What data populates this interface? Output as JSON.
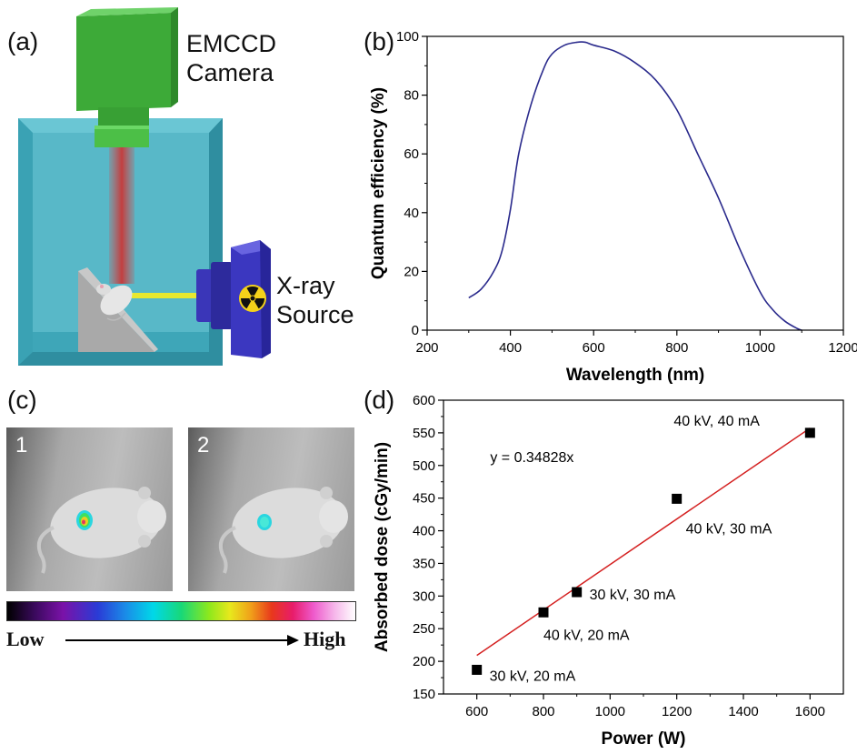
{
  "panel_a": {
    "label": "(a)",
    "camera_label_line1": "EMCCD",
    "camera_label_line2": "Camera",
    "source_label_line1": "X-ray",
    "source_label_line2": "Source",
    "colors": {
      "camera": "#3fae3a",
      "chamber": "#3c9fb0",
      "source": "#3a36b8",
      "beam_light": "#d04848",
      "beam_xray": "#e8e830"
    }
  },
  "panel_c": {
    "label": "(c)",
    "image1_number": "1",
    "image2_number": "2",
    "scale_low": "Low",
    "scale_high": "High"
  },
  "chart_data": [
    {
      "panel_label": "(b)",
      "type": "line",
      "xlabel": "Wavelength (nm)",
      "ylabel": "Quantum efficiency (%)",
      "xlim": [
        200,
        1200
      ],
      "ylim": [
        0,
        100
      ],
      "xticks": [
        200,
        400,
        600,
        800,
        1000,
        1200
      ],
      "yticks": [
        0,
        20,
        40,
        60,
        80,
        100
      ],
      "grid": false,
      "line_color": "#2a2a8c",
      "series": [
        {
          "x": [
            300,
            330,
            360,
            380,
            400,
            420,
            450,
            480,
            500,
            530,
            560,
            580,
            600,
            650,
            700,
            750,
            800,
            850,
            900,
            950,
            1000,
            1030,
            1060,
            1090,
            1100
          ],
          "values": [
            11,
            14,
            20,
            27,
            41,
            60,
            77,
            89,
            94,
            97,
            98,
            98,
            97,
            95,
            91,
            85,
            75,
            60,
            45,
            28,
            13,
            7,
            3,
            0.5,
            0
          ]
        }
      ]
    },
    {
      "panel_label": "(d)",
      "type": "scatter",
      "xlabel": "Power (W)",
      "ylabel": "Absorbed dose (cGy/min)",
      "xlim": [
        500,
        1700
      ],
      "ylim": [
        150,
        600
      ],
      "xticks": [
        600,
        800,
        1000,
        1200,
        1400,
        1600
      ],
      "yticks": [
        150,
        200,
        250,
        300,
        350,
        400,
        450,
        500,
        550,
        600
      ],
      "grid": false,
      "fit_equation": "y = 0.34828x",
      "fit_slope": 0.34828,
      "fit_range": [
        600,
        1600
      ],
      "fit_color": "#d42020",
      "points": [
        {
          "x": 600,
          "y": 187,
          "label": "30 kV, 20 mA"
        },
        {
          "x": 800,
          "y": 275,
          "label": "40 kV, 20 mA"
        },
        {
          "x": 900,
          "y": 306,
          "label": "30 kV, 30 mA"
        },
        {
          "x": 1200,
          "y": 449,
          "label": "40 kV, 30 mA"
        },
        {
          "x": 1600,
          "y": 550,
          "label": "40 kV, 40 mA"
        }
      ]
    }
  ]
}
